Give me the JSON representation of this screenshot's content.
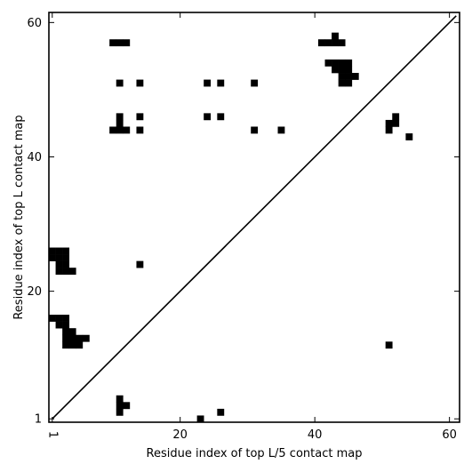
{
  "chart_data": {
    "type": "heatmap",
    "title": "",
    "xlabel": "Residue index of top L/5 contact map",
    "ylabel": "Residue index of top L contact map",
    "xlim": [
      0.5,
      61.5
    ],
    "ylim": [
      0.5,
      61.5
    ],
    "xticks": [
      {
        "value": 1,
        "label": "1"
      },
      {
        "value": 20,
        "label": "20"
      },
      {
        "value": 40,
        "label": "40"
      },
      {
        "value": 60,
        "label": "60"
      }
    ],
    "yticks": [
      {
        "value": 1,
        "label": "1"
      },
      {
        "value": 20,
        "label": "20"
      },
      {
        "value": 40,
        "label": "40"
      },
      {
        "value": 60,
        "label": "60"
      }
    ],
    "diagonal": {
      "from": [
        1,
        1
      ],
      "to": [
        61,
        61
      ]
    },
    "grid": false,
    "legend": "none",
    "colors": {
      "cell": "#000000",
      "axes": "#000000",
      "background": "#ffffff"
    },
    "cells": [
      [
        10,
        57
      ],
      [
        11,
        57
      ],
      [
        12,
        57
      ],
      [
        11,
        51
      ],
      [
        14,
        51
      ],
      [
        24,
        51
      ],
      [
        26,
        51
      ],
      [
        31,
        51
      ],
      [
        11,
        46
      ],
      [
        14,
        46
      ],
      [
        24,
        46
      ],
      [
        26,
        46
      ],
      [
        11,
        45
      ],
      [
        10,
        44
      ],
      [
        11,
        44
      ],
      [
        12,
        44
      ],
      [
        14,
        44
      ],
      [
        31,
        44
      ],
      [
        35,
        44
      ],
      [
        14,
        24
      ],
      [
        1,
        26
      ],
      [
        2,
        26
      ],
      [
        3,
        26
      ],
      [
        1,
        25
      ],
      [
        2,
        25
      ],
      [
        3,
        25
      ],
      [
        2,
        24
      ],
      [
        3,
        24
      ],
      [
        2,
        23
      ],
      [
        3,
        23
      ],
      [
        4,
        23
      ],
      [
        1,
        16
      ],
      [
        2,
        16
      ],
      [
        3,
        16
      ],
      [
        2,
        15
      ],
      [
        3,
        15
      ],
      [
        3,
        14
      ],
      [
        4,
        14
      ],
      [
        3,
        13
      ],
      [
        4,
        13
      ],
      [
        5,
        13
      ],
      [
        6,
        13
      ],
      [
        3,
        12
      ],
      [
        4,
        12
      ],
      [
        5,
        12
      ],
      [
        11,
        4
      ],
      [
        11,
        3
      ],
      [
        12,
        3
      ],
      [
        11,
        2
      ],
      [
        26,
        2
      ],
      [
        23,
        1
      ],
      [
        43,
        58
      ],
      [
        41,
        57
      ],
      [
        42,
        57
      ],
      [
        43,
        57
      ],
      [
        44,
        57
      ],
      [
        42,
        54
      ],
      [
        43,
        54
      ],
      [
        44,
        54
      ],
      [
        45,
        54
      ],
      [
        43,
        53
      ],
      [
        44,
        53
      ],
      [
        45,
        53
      ],
      [
        44,
        52
      ],
      [
        45,
        52
      ],
      [
        46,
        52
      ],
      [
        44,
        51
      ],
      [
        45,
        51
      ],
      [
        52,
        46
      ],
      [
        51,
        45
      ],
      [
        52,
        45
      ],
      [
        51,
        44
      ],
      [
        54,
        43
      ],
      [
        51,
        12
      ]
    ]
  }
}
